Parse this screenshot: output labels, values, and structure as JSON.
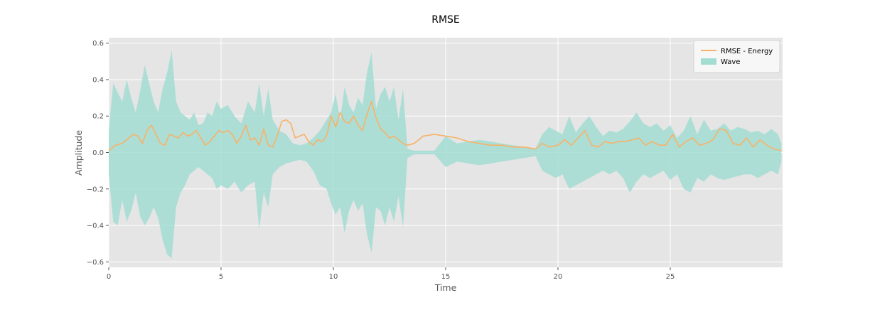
{
  "chart_data": {
    "type": "area",
    "title": "RMSE",
    "xlabel": "Time",
    "ylabel": "Amplitude",
    "xlim": [
      0,
      30
    ],
    "ylim": [
      -0.63,
      0.63
    ],
    "xticks": [
      0,
      5,
      10,
      15,
      20,
      25
    ],
    "xtick_labels": [
      "0",
      "5",
      "10",
      "15",
      "20",
      "25"
    ],
    "yticks": [
      0.6,
      0.4,
      0.2,
      0.0,
      -0.2,
      -0.4,
      -0.6
    ],
    "ytick_labels": [
      "0.6",
      "0.4",
      "0.2",
      "0.0",
      "−0.2",
      "−0.4",
      "−0.6"
    ],
    "grid": true,
    "legend_position": "top-right",
    "colors": {
      "background": "#e5e5e5",
      "grid": "#ffffff",
      "energy": "#f7b267",
      "wave": "#a3ddd2"
    },
    "series": [
      {
        "name": "RMSE - Energy",
        "kind": "line",
        "x": [
          0,
          0.3,
          0.6,
          0.9,
          1.1,
          1.3,
          1.5,
          1.7,
          1.9,
          2.1,
          2.3,
          2.5,
          2.7,
          2.9,
          3.1,
          3.3,
          3.5,
          3.7,
          3.9,
          4.1,
          4.3,
          4.5,
          4.7,
          4.9,
          5.1,
          5.3,
          5.5,
          5.7,
          5.9,
          6.1,
          6.3,
          6.5,
          6.7,
          6.9,
          7.1,
          7.3,
          7.5,
          7.7,
          7.9,
          8.1,
          8.3,
          8.5,
          8.7,
          8.9,
          9.1,
          9.3,
          9.5,
          9.7,
          9.9,
          10.1,
          10.3,
          10.5,
          10.7,
          10.9,
          11.1,
          11.3,
          11.5,
          11.7,
          11.9,
          12.1,
          12.3,
          12.5,
          12.7,
          12.9,
          13.1,
          13.3,
          13.6,
          14.0,
          14.5,
          15.0,
          15.5,
          16.0,
          16.5,
          17.0,
          17.5,
          18.0,
          18.5,
          19.0,
          19.3,
          19.6,
          20.0,
          20.3,
          20.6,
          20.9,
          21.2,
          21.5,
          21.8,
          22.1,
          22.4,
          22.7,
          23.0,
          23.3,
          23.6,
          23.9,
          24.2,
          24.5,
          24.8,
          25.1,
          25.4,
          25.7,
          26.0,
          26.3,
          26.6,
          26.9,
          27.2,
          27.5,
          27.8,
          28.1,
          28.4,
          28.7,
          29.0,
          29.3,
          29.6,
          29.95
        ],
        "y": [
          0.01,
          0.04,
          0.05,
          0.08,
          0.1,
          0.09,
          0.05,
          0.12,
          0.15,
          0.1,
          0.05,
          0.04,
          0.1,
          0.09,
          0.08,
          0.11,
          0.09,
          0.1,
          0.12,
          0.08,
          0.04,
          0.06,
          0.09,
          0.12,
          0.11,
          0.12,
          0.1,
          0.05,
          0.09,
          0.15,
          0.07,
          0.08,
          0.04,
          0.13,
          0.04,
          0.03,
          0.09,
          0.17,
          0.18,
          0.16,
          0.08,
          0.09,
          0.1,
          0.06,
          0.04,
          0.07,
          0.06,
          0.09,
          0.2,
          0.14,
          0.22,
          0.17,
          0.16,
          0.2,
          0.15,
          0.12,
          0.21,
          0.28,
          0.19,
          0.13,
          0.11,
          0.08,
          0.09,
          0.07,
          0.05,
          0.04,
          0.05,
          0.09,
          0.1,
          0.09,
          0.08,
          0.06,
          0.05,
          0.04,
          0.04,
          0.03,
          0.03,
          0.02,
          0.05,
          0.03,
          0.04,
          0.07,
          0.04,
          0.08,
          0.12,
          0.04,
          0.03,
          0.06,
          0.05,
          0.06,
          0.06,
          0.07,
          0.08,
          0.04,
          0.06,
          0.04,
          0.04,
          0.1,
          0.03,
          0.06,
          0.08,
          0.04,
          0.05,
          0.07,
          0.13,
          0.12,
          0.05,
          0.04,
          0.08,
          0.03,
          0.07,
          0.04,
          0.02,
          0.01
        ]
      },
      {
        "name": "Wave",
        "kind": "envelope",
        "x": [
          0,
          0.2,
          0.4,
          0.6,
          0.8,
          1.0,
          1.2,
          1.4,
          1.6,
          1.8,
          2.0,
          2.2,
          2.4,
          2.6,
          2.8,
          3.0,
          3.2,
          3.4,
          3.6,
          3.8,
          4.0,
          4.2,
          4.4,
          4.6,
          4.8,
          5.0,
          5.3,
          5.6,
          5.9,
          6.2,
          6.5,
          6.7,
          6.9,
          7.1,
          7.3,
          7.6,
          7.9,
          8.2,
          8.5,
          8.8,
          9.1,
          9.4,
          9.7,
          9.9,
          10.1,
          10.3,
          10.5,
          10.7,
          10.9,
          11.1,
          11.3,
          11.5,
          11.7,
          11.9,
          12.1,
          12.3,
          12.5,
          12.7,
          12.9,
          13.1,
          13.3,
          13.6,
          14.0,
          14.5,
          15.0,
          15.5,
          16.0,
          16.5,
          17.0,
          17.5,
          18.0,
          18.5,
          19.0,
          19.3,
          19.6,
          19.9,
          20.2,
          20.5,
          20.8,
          21.1,
          21.4,
          21.7,
          22.0,
          22.3,
          22.6,
          22.9,
          23.2,
          23.5,
          23.8,
          24.1,
          24.4,
          24.7,
          25.0,
          25.3,
          25.6,
          25.9,
          26.2,
          26.5,
          26.8,
          27.1,
          27.4,
          27.7,
          28.0,
          28.3,
          28.6,
          28.9,
          29.2,
          29.5,
          29.8,
          29.95
        ],
        "upper": [
          0.12,
          0.38,
          0.33,
          0.28,
          0.4,
          0.3,
          0.22,
          0.34,
          0.48,
          0.38,
          0.28,
          0.22,
          0.35,
          0.44,
          0.56,
          0.28,
          0.22,
          0.2,
          0.18,
          0.22,
          0.15,
          0.16,
          0.22,
          0.2,
          0.28,
          0.24,
          0.26,
          0.2,
          0.16,
          0.28,
          0.22,
          0.38,
          0.2,
          0.35,
          0.18,
          0.12,
          0.1,
          0.05,
          0.04,
          0.05,
          0.08,
          0.12,
          0.18,
          0.22,
          0.32,
          0.18,
          0.36,
          0.26,
          0.22,
          0.3,
          0.26,
          0.44,
          0.55,
          0.24,
          0.32,
          0.36,
          0.28,
          0.36,
          0.18,
          0.35,
          0.02,
          0.01,
          0.01,
          0.01,
          0.09,
          0.05,
          0.06,
          0.07,
          0.06,
          0.05,
          0.04,
          0.03,
          0.02,
          0.1,
          0.14,
          0.12,
          0.1,
          0.2,
          0.11,
          0.16,
          0.2,
          0.14,
          0.09,
          0.12,
          0.11,
          0.13,
          0.17,
          0.22,
          0.16,
          0.14,
          0.16,
          0.12,
          0.15,
          0.08,
          0.12,
          0.2,
          0.1,
          0.18,
          0.12,
          0.13,
          0.16,
          0.12,
          0.14,
          0.13,
          0.11,
          0.12,
          0.1,
          0.13,
          0.1,
          0.05
        ],
        "lower": [
          -0.12,
          -0.38,
          -0.4,
          -0.26,
          -0.38,
          -0.32,
          -0.22,
          -0.35,
          -0.4,
          -0.36,
          -0.3,
          -0.36,
          -0.48,
          -0.56,
          -0.58,
          -0.3,
          -0.22,
          -0.18,
          -0.12,
          -0.1,
          -0.08,
          -0.1,
          -0.12,
          -0.14,
          -0.2,
          -0.18,
          -0.2,
          -0.16,
          -0.22,
          -0.18,
          -0.16,
          -0.42,
          -0.22,
          -0.3,
          -0.12,
          -0.08,
          -0.06,
          -0.05,
          -0.04,
          -0.05,
          -0.1,
          -0.18,
          -0.2,
          -0.28,
          -0.34,
          -0.3,
          -0.44,
          -0.32,
          -0.26,
          -0.32,
          -0.28,
          -0.45,
          -0.55,
          -0.3,
          -0.32,
          -0.4,
          -0.3,
          -0.38,
          -0.24,
          -0.41,
          -0.03,
          -0.01,
          -0.01,
          -0.01,
          -0.08,
          -0.05,
          -0.06,
          -0.07,
          -0.06,
          -0.05,
          -0.04,
          -0.03,
          -0.02,
          -0.1,
          -0.12,
          -0.14,
          -0.12,
          -0.2,
          -0.18,
          -0.16,
          -0.14,
          -0.12,
          -0.1,
          -0.12,
          -0.1,
          -0.14,
          -0.22,
          -0.16,
          -0.12,
          -0.14,
          -0.12,
          -0.1,
          -0.15,
          -0.12,
          -0.2,
          -0.22,
          -0.14,
          -0.16,
          -0.12,
          -0.14,
          -0.15,
          -0.14,
          -0.13,
          -0.12,
          -0.12,
          -0.14,
          -0.12,
          -0.1,
          -0.12,
          -0.05
        ]
      }
    ]
  }
}
